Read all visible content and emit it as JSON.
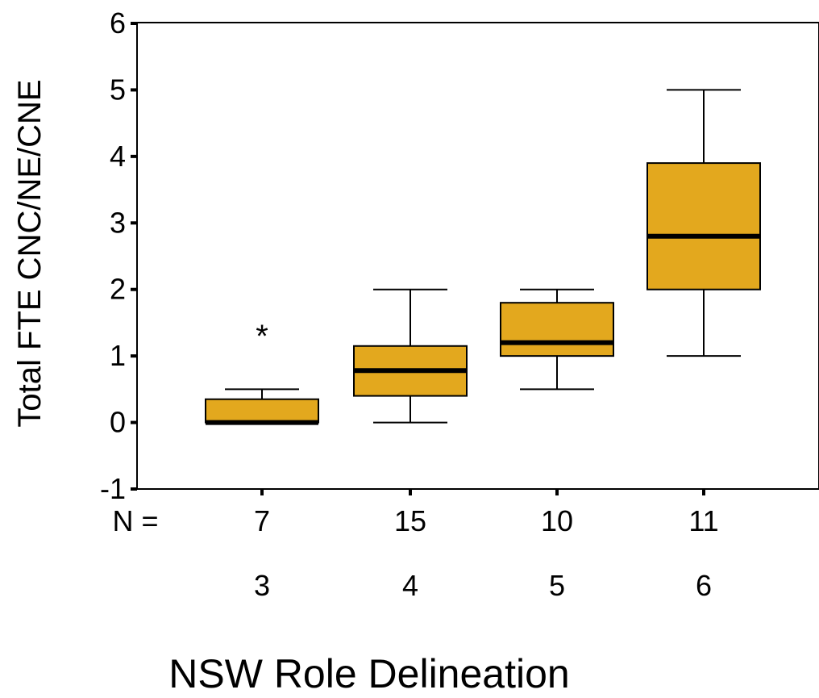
{
  "chart_data": {
    "type": "boxplot",
    "xlabel": "NSW Role Delineation",
    "ylabel": "Total FTE CNC/NE/CNE",
    "ylim": [
      -1,
      6
    ],
    "yticks": [
      -1,
      0,
      1,
      2,
      3,
      4,
      5,
      6
    ],
    "n_label": "N =",
    "categories": [
      "3",
      "4",
      "5",
      "6"
    ],
    "n": [
      "7",
      "15",
      "10",
      "11"
    ],
    "boxes": [
      {
        "whisker_low": 0,
        "q1": 0,
        "median": 0,
        "q3": 0.35,
        "whisker_high": 0.5,
        "outliers": [
          1.4
        ]
      },
      {
        "whisker_low": 0,
        "q1": 0.4,
        "median": 0.78,
        "q3": 1.15,
        "whisker_high": 2,
        "outliers": []
      },
      {
        "whisker_low": 0.5,
        "q1": 1,
        "median": 1.2,
        "q3": 1.8,
        "whisker_high": 2,
        "outliers": []
      },
      {
        "whisker_low": 1,
        "q1": 2,
        "median": 2.8,
        "q3": 3.9,
        "whisker_high": 5,
        "outliers": []
      }
    ],
    "outlier_marker": "*",
    "box_color": "#E3A81E"
  }
}
